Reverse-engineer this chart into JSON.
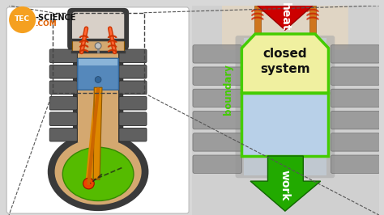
{
  "bg_color": "#d8d8d8",
  "logo_bg": "#f5a020",
  "logo_tec_color": "#ffffff",
  "logo_science_color": "#1a1a1a",
  "logo_com_color": "#e06000",
  "heat_arrow_color": "#cc0000",
  "heat_arrow_edge": "#990000",
  "work_arrow_color": "#22aa00",
  "work_arrow_edge": "#116600",
  "boundary_color": "#44cc00",
  "system_fill": "#f0f0a0",
  "system_stroke": "#44cc00",
  "piston_fill": "#b8d0e8",
  "heat_text": "heat",
  "work_text": "work",
  "boundary_text": "boundary",
  "closed_system_text": "closed\nsystem",
  "engine_body": "#d4a870",
  "engine_dark": "#3a3a3a",
  "engine_mid": "#888888",
  "engine_light": "#e8e0d8",
  "engine_head_fill": "#c8c0b8",
  "cylinder_fins": "#606060",
  "fin_light": "#909090",
  "bore_fill": "#e0d8c8",
  "piston_blue": "#5588bb",
  "piston_blue_light": "#8ab4d8",
  "rod_color": "#dd8800",
  "crank_green": "#55bb00",
  "crank_red": "#ee4400",
  "valve_red": "#cc3300",
  "spring_color": "#555555",
  "right_bg": "#c8c8c8"
}
